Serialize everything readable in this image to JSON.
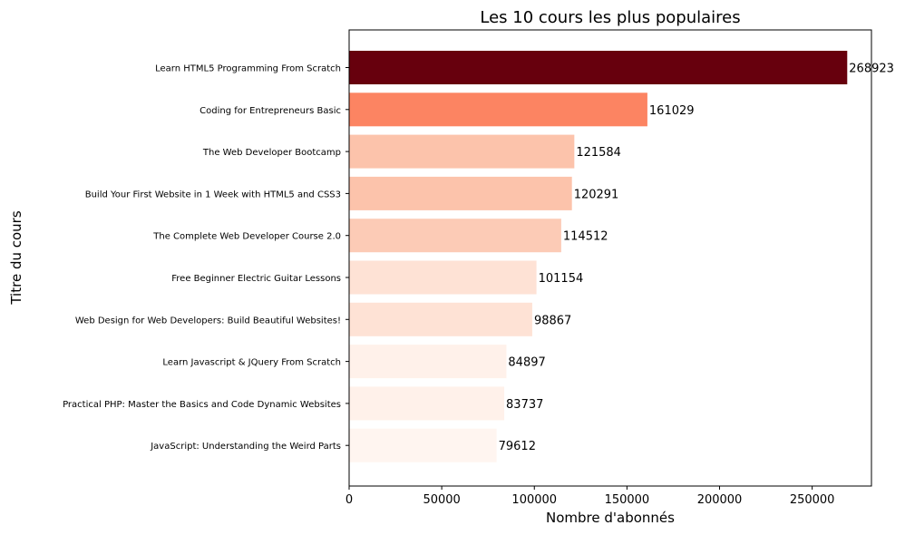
{
  "chart_data": {
    "type": "bar",
    "orientation": "horizontal",
    "title": "Les 10 cours les plus populaires",
    "xlabel": "Nombre d'abonnés",
    "ylabel": "Titre du cours",
    "xlim": [
      0,
      282000
    ],
    "xticks": [
      0,
      50000,
      100000,
      150000,
      200000,
      250000
    ],
    "grid": false,
    "categories": [
      "Learn HTML5 Programming From Scratch",
      "Coding for Entrepreneurs Basic",
      "The Web Developer Bootcamp",
      "Build Your First Website in 1 Week with HTML5 and CSS3",
      "The Complete Web Developer Course 2.0",
      "Free Beginner Electric Guitar Lessons",
      "Web Design for Web Developers: Build Beautiful Websites!",
      "Learn Javascript & JQuery From Scratch",
      "Practical PHP: Master the Basics and Code Dynamic Websites",
      "JavaScript: Understanding the Weird Parts"
    ],
    "values": [
      268923,
      161029,
      121584,
      120291,
      114512,
      101154,
      98867,
      84897,
      83737,
      79612
    ],
    "colors": [
      "#67000d",
      "#fc8462",
      "#fcc3ab",
      "#fcc3ab",
      "#fccbb6",
      "#fee2d5",
      "#fee2d5",
      "#fff1ea",
      "#fff1ea",
      "#fff5f0"
    ]
  }
}
